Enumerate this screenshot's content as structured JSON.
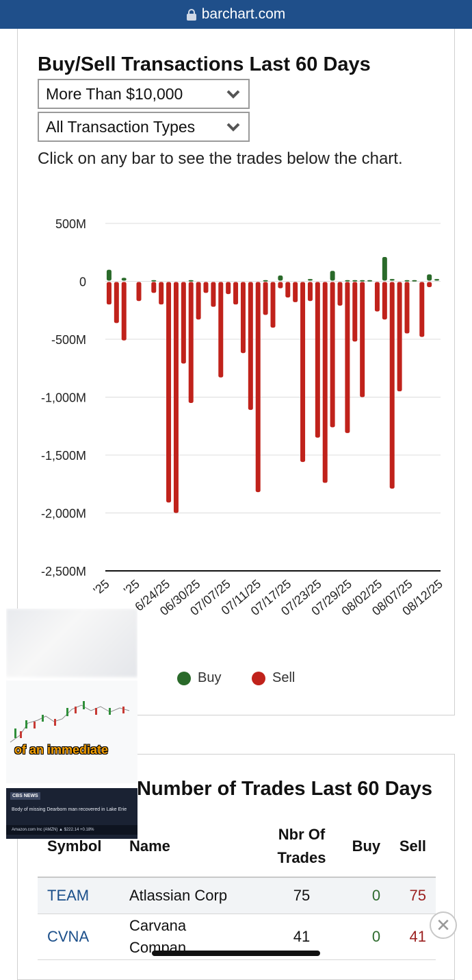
{
  "browser": {
    "url": "barchart.com"
  },
  "buy_sell": {
    "title": "Buy/Sell Transactions Last 60 Days",
    "amount_filter": "More Than $10,000",
    "type_filter": "All Transaction Types",
    "hint": "Click on any bar to see the trades below the chart.",
    "legend": {
      "buy": "Buy",
      "sell": "Sell"
    }
  },
  "chart_data": {
    "type": "bar",
    "y_ticks": [
      "500M",
      "0",
      "-500M",
      "-1,000M",
      "-1,500M",
      "-2,000M",
      "-2,500M"
    ],
    "ylim": [
      -2500,
      500
    ],
    "y_unit": "M",
    "x_tick_labels": [
      "'25",
      "'25",
      "6/24/25",
      "06/30/25",
      "07/07/25",
      "07/11/25",
      "07/17/25",
      "07/23/25",
      "07/29/25",
      "08/02/25",
      "08/07/25",
      "08/12/25"
    ],
    "grid": true,
    "legend_position": "bottom",
    "colors": {
      "buy": "#2a6a2a",
      "sell": "#c0221b"
    },
    "buy_values": [
      100,
      0,
      30,
      0,
      0,
      0,
      10,
      0,
      0,
      0,
      0,
      10,
      0,
      0,
      0,
      0,
      0,
      0,
      0,
      0,
      0,
      10,
      0,
      50,
      0,
      0,
      0,
      20,
      0,
      0,
      90,
      0,
      10,
      10,
      10,
      10,
      0,
      210,
      20,
      0,
      10,
      10,
      0,
      60,
      20
    ],
    "sell_values": [
      -200,
      -360,
      -510,
      0,
      -170,
      0,
      -100,
      -200,
      -1910,
      -2000,
      -710,
      -1050,
      -330,
      -100,
      -220,
      -830,
      -110,
      -200,
      -620,
      -1110,
      -1820,
      -290,
      -400,
      -60,
      -140,
      -180,
      -1560,
      -170,
      -1350,
      -1740,
      -1260,
      -210,
      -1310,
      -520,
      -1000,
      0,
      -260,
      -330,
      -1790,
      -950,
      -450,
      0,
      -480,
      -50,
      0
    ]
  },
  "trades_table": {
    "title": "Number of Trades Last 60 Days",
    "headers": {
      "symbol": "Symbol",
      "name": "Name",
      "trades": "Nbr Of Trades",
      "buy": "Buy",
      "sell": "Sell"
    },
    "rows": [
      {
        "symbol": "TEAM",
        "name": "Atlassian Corp",
        "trades": "75",
        "buy": "0",
        "sell": "75"
      },
      {
        "symbol": "CVNA",
        "name": "Carvana Compan",
        "trades": "41",
        "buy": "0",
        "sell": "41"
      }
    ]
  },
  "video_overlay": {
    "caption": "of an immediate",
    "news_tag": "CBS NEWS",
    "news_headline": "Body of missing Dearborn man recovered in Lake Erie",
    "ticker": "Amazon.com Inc (AMZN) ▲ $222.14 +0.18%"
  }
}
